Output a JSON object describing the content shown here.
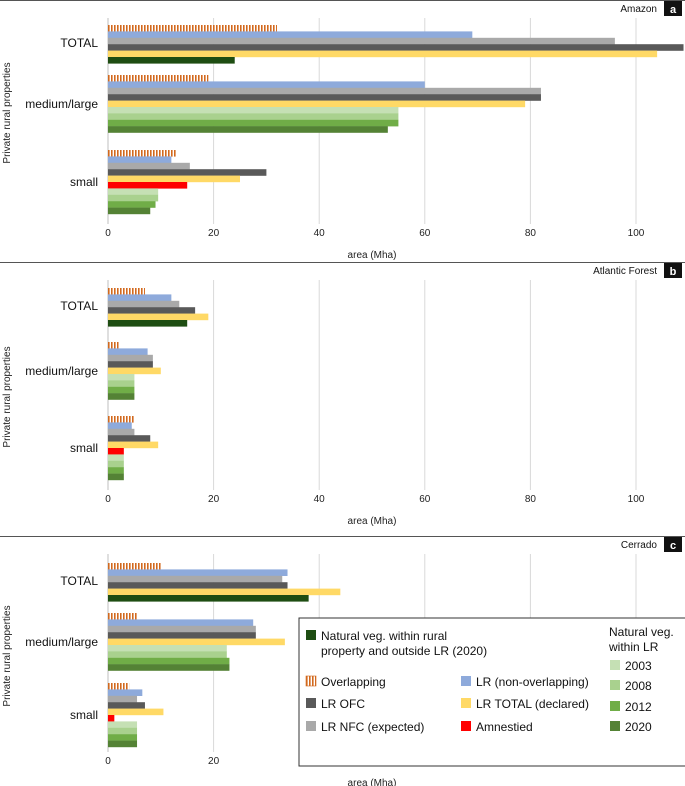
{
  "y_axis_label": "Private rural properties",
  "x_axis_label": "area (Mha)",
  "x_ticks": [
    "0",
    "20",
    "40",
    "60",
    "80",
    "100"
  ],
  "categories": [
    "TOTAL",
    "medium/large",
    "small"
  ],
  "series_styles": {
    "overlap": {
      "color": "#d2691e",
      "pattern": "vertical-hatch"
    },
    "lr_nonov": {
      "color": "#8eaadb"
    },
    "lr_nfc": {
      "color": "#a9a9a9"
    },
    "lr_ofc": {
      "color": "#595959"
    },
    "lr_total": {
      "color": "#ffd966"
    },
    "amnestied": {
      "color": "#ff0000"
    },
    "natveg_outside": {
      "color": "#1e4d12"
    },
    "v2003": {
      "color": "#c5e0b4"
    },
    "v2008": {
      "color": "#a9d18e"
    },
    "v2012": {
      "color": "#70ad47"
    },
    "v2020": {
      "color": "#548235"
    }
  },
  "chart_data": [
    {
      "type": "bar",
      "orientation": "horizontal",
      "region": "Amazon",
      "panel_label": "a",
      "xlabel": "area (Mha)",
      "ylabel": "Private rural properties",
      "xlim": [
        0,
        110
      ],
      "grid": true,
      "groups": [
        {
          "category": "TOTAL",
          "bars": [
            {
              "key": "overlap",
              "value": 32
            },
            {
              "key": "lr_nonov",
              "value": 69
            },
            {
              "key": "lr_nfc",
              "value": 96
            },
            {
              "key": "lr_ofc",
              "value": 109
            },
            {
              "key": "lr_total",
              "value": 104
            },
            {
              "key": "natveg_outside",
              "value": 24
            }
          ]
        },
        {
          "category": "medium/large",
          "bars": [
            {
              "key": "overlap",
              "value": 19
            },
            {
              "key": "lr_nonov",
              "value": 60
            },
            {
              "key": "lr_nfc",
              "value": 82
            },
            {
              "key": "lr_ofc",
              "value": 82
            },
            {
              "key": "lr_total",
              "value": 79
            },
            {
              "key": "v2003",
              "value": 55
            },
            {
              "key": "v2008",
              "value": 55
            },
            {
              "key": "v2012",
              "value": 55
            },
            {
              "key": "v2020",
              "value": 53
            }
          ]
        },
        {
          "category": "small",
          "bars": [
            {
              "key": "overlap",
              "value": 13
            },
            {
              "key": "lr_nonov",
              "value": 12
            },
            {
              "key": "lr_nfc",
              "value": 15.5
            },
            {
              "key": "lr_ofc",
              "value": 30
            },
            {
              "key": "lr_total",
              "value": 25
            },
            {
              "key": "amnestied",
              "value": 15
            },
            {
              "key": "v2003",
              "value": 9.5
            },
            {
              "key": "v2008",
              "value": 9.5
            },
            {
              "key": "v2012",
              "value": 9
            },
            {
              "key": "v2020",
              "value": 8
            }
          ]
        }
      ]
    },
    {
      "type": "bar",
      "orientation": "horizontal",
      "region": "Atlantic Forest",
      "panel_label": "b",
      "xlabel": "area (Mha)",
      "ylabel": "Private rural properties",
      "xlim": [
        0,
        110
      ],
      "grid": true,
      "groups": [
        {
          "category": "TOTAL",
          "bars": [
            {
              "key": "overlap",
              "value": 7
            },
            {
              "key": "lr_nonov",
              "value": 12
            },
            {
              "key": "lr_nfc",
              "value": 13.5
            },
            {
              "key": "lr_ofc",
              "value": 16.5
            },
            {
              "key": "lr_total",
              "value": 19
            },
            {
              "key": "natveg_outside",
              "value": 15
            }
          ]
        },
        {
          "category": "medium/large",
          "bars": [
            {
              "key": "overlap",
              "value": 2
            },
            {
              "key": "lr_nonov",
              "value": 7.5
            },
            {
              "key": "lr_nfc",
              "value": 8.5
            },
            {
              "key": "lr_ofc",
              "value": 8.5
            },
            {
              "key": "lr_total",
              "value": 10
            },
            {
              "key": "v2003",
              "value": 5
            },
            {
              "key": "v2008",
              "value": 5
            },
            {
              "key": "v2012",
              "value": 5
            },
            {
              "key": "v2020",
              "value": 5
            }
          ]
        },
        {
          "category": "small",
          "bars": [
            {
              "key": "overlap",
              "value": 5
            },
            {
              "key": "lr_nonov",
              "value": 4.5
            },
            {
              "key": "lr_nfc",
              "value": 5
            },
            {
              "key": "lr_ofc",
              "value": 8
            },
            {
              "key": "lr_total",
              "value": 9.5
            },
            {
              "key": "amnestied",
              "value": 3
            },
            {
              "key": "v2003",
              "value": 3
            },
            {
              "key": "v2008",
              "value": 3
            },
            {
              "key": "v2012",
              "value": 3
            },
            {
              "key": "v2020",
              "value": 3
            }
          ]
        }
      ]
    },
    {
      "type": "bar",
      "orientation": "horizontal",
      "region": "Cerrado",
      "panel_label": "c",
      "xlabel": "area (Mha)",
      "ylabel": "Private rural properties",
      "xlim": [
        0,
        110
      ],
      "grid": true,
      "groups": [
        {
          "category": "TOTAL",
          "bars": [
            {
              "key": "overlap",
              "value": 10
            },
            {
              "key": "lr_nonov",
              "value": 34
            },
            {
              "key": "lr_nfc",
              "value": 33
            },
            {
              "key": "lr_ofc",
              "value": 34
            },
            {
              "key": "lr_total",
              "value": 44
            },
            {
              "key": "natveg_outside",
              "value": 38
            }
          ]
        },
        {
          "category": "medium/large",
          "bars": [
            {
              "key": "overlap",
              "value": 5.5
            },
            {
              "key": "lr_nonov",
              "value": 27.5
            },
            {
              "key": "lr_nfc",
              "value": 28
            },
            {
              "key": "lr_ofc",
              "value": 28
            },
            {
              "key": "lr_total",
              "value": 33.5
            },
            {
              "key": "v2003",
              "value": 22.5
            },
            {
              "key": "v2008",
              "value": 22.5
            },
            {
              "key": "v2012",
              "value": 23
            },
            {
              "key": "v2020",
              "value": 23
            }
          ]
        },
        {
          "category": "small",
          "bars": [
            {
              "key": "overlap",
              "value": 4
            },
            {
              "key": "lr_nonov",
              "value": 6.5
            },
            {
              "key": "lr_nfc",
              "value": 5.5
            },
            {
              "key": "lr_ofc",
              "value": 7
            },
            {
              "key": "lr_total",
              "value": 10.5
            },
            {
              "key": "amnestied",
              "value": 1.2
            },
            {
              "key": "v2003",
              "value": 5.5
            },
            {
              "key": "v2008",
              "value": 5.5
            },
            {
              "key": "v2012",
              "value": 5.5
            },
            {
              "key": "v2020",
              "value": 5.5
            }
          ]
        }
      ]
    }
  ],
  "legend": {
    "natveg_outside": "Natural veg. within rural property and outside LR (2020)",
    "natveg_outside_lines": [
      "Natural veg. within rural",
      "property and outside LR (2020)"
    ],
    "overlap": "Overlapping",
    "lr_ofc": "LR OFC",
    "lr_nfc": "LR NFC (expected)",
    "lr_nonov": "LR (non-overlapping)",
    "lr_total": "LR TOTAL (declared)",
    "amnestied": "Amnestied",
    "veg_title_lines": [
      "Natural veg.",
      "within LR"
    ],
    "v2003": "2003",
    "v2008": "2008",
    "v2012": "2012",
    "v2020": "2020"
  }
}
